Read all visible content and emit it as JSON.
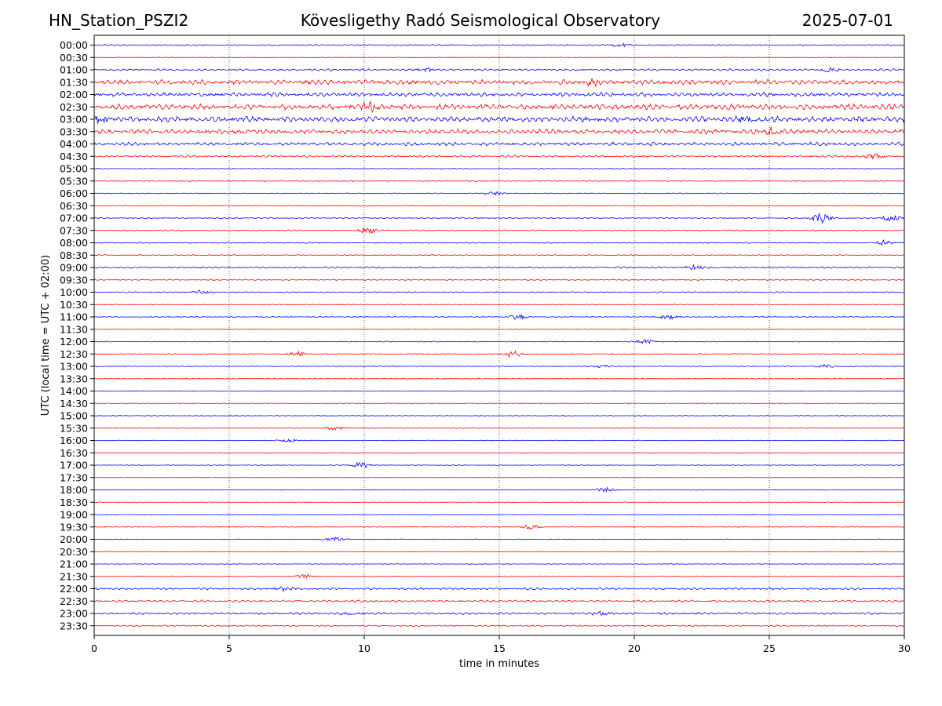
{
  "header": {
    "station": "HN_Station_PSZI2",
    "observatory": "Kövesligethy Radó Seismological Observatory",
    "date": "2025-07-01"
  },
  "chart_data": {
    "type": "line",
    "xlabel": "time in minutes",
    "ylabel": "UTC (local time = UTC + 02:00)",
    "xlim": [
      0,
      30
    ],
    "x_ticks": [
      "0",
      "5",
      "10",
      "15",
      "20",
      "25",
      "30"
    ],
    "x_tick_values": [
      0,
      5,
      10,
      15,
      20,
      25,
      30
    ],
    "vertical_gridlines": "dotted at every x tick",
    "row_labels": [
      "00:00",
      "00:30",
      "01:00",
      "01:30",
      "02:00",
      "02:30",
      "03:00",
      "03:30",
      "04:00",
      "04:30",
      "05:00",
      "05:30",
      "06:00",
      "06:30",
      "07:00",
      "07:30",
      "08:00",
      "08:30",
      "09:00",
      "09:30",
      "10:00",
      "10:30",
      "11:00",
      "11:30",
      "12:00",
      "12:30",
      "13:00",
      "13:30",
      "14:00",
      "14:30",
      "15:00",
      "15:30",
      "16:00",
      "16:30",
      "17:00",
      "17:30",
      "18:00",
      "18:30",
      "19:00",
      "19:30",
      "20:00",
      "20:30",
      "21:00",
      "21:30",
      "22:00",
      "22:30",
      "23:00",
      "23:30"
    ],
    "trace_colors": [
      "#0000ff",
      "#ff0000"
    ],
    "row_noise_levels": [
      1,
      0.5,
      1.5,
      3.5,
      3,
      4,
      4,
      3.5,
      2.5,
      1.5,
      0.6,
      0.6,
      0.6,
      0.6,
      0.8,
      0.8,
      0.8,
      0.8,
      1.2,
      0.8,
      0.8,
      0.5,
      0.6,
      0.5,
      0.6,
      0.5,
      0.6,
      0.5,
      0.4,
      0.5,
      0.4,
      0.5,
      0.4,
      0.5,
      0.5,
      0.3,
      0.4,
      0.4,
      0.3,
      0.4,
      0.4,
      0.4,
      0.4,
      0.6,
      1.5,
      1.5,
      1.5,
      1
    ],
    "events": [
      {
        "row": "00:00",
        "minute": 19.5,
        "amplitude": 2.5
      },
      {
        "row": "01:00",
        "minute": 12.3,
        "amplitude": 3
      },
      {
        "row": "01:00",
        "minute": 27.2,
        "amplitude": 4
      },
      {
        "row": "01:30",
        "minute": 18.5,
        "amplitude": 4
      },
      {
        "row": "02:30",
        "minute": 10.3,
        "amplitude": 5
      },
      {
        "row": "03:00",
        "minute": 0.2,
        "amplitude": 6
      },
      {
        "row": "03:00",
        "minute": 24.1,
        "amplitude": 5
      },
      {
        "row": "03:30",
        "minute": 25.1,
        "amplitude": 6
      },
      {
        "row": "04:30",
        "minute": 28.9,
        "amplitude": 4
      },
      {
        "row": "06:00",
        "minute": 14.8,
        "amplitude": 2.5
      },
      {
        "row": "07:00",
        "minute": 26.9,
        "amplitude": 7
      },
      {
        "row": "07:00",
        "minute": 29.5,
        "amplitude": 5
      },
      {
        "row": "07:30",
        "minute": 10.1,
        "amplitude": 4
      },
      {
        "row": "08:00",
        "minute": 29.2,
        "amplitude": 4
      },
      {
        "row": "09:00",
        "minute": 22.2,
        "amplitude": 3
      },
      {
        "row": "10:00",
        "minute": 4.0,
        "amplitude": 2.5
      },
      {
        "row": "11:00",
        "minute": 15.7,
        "amplitude": 3
      },
      {
        "row": "11:00",
        "minute": 21.3,
        "amplitude": 3
      },
      {
        "row": "12:00",
        "minute": 20.4,
        "amplitude": 3
      },
      {
        "row": "12:30",
        "minute": 7.5,
        "amplitude": 3
      },
      {
        "row": "12:30",
        "minute": 15.5,
        "amplitude": 4
      },
      {
        "row": "13:00",
        "minute": 18.8,
        "amplitude": 2
      },
      {
        "row": "13:00",
        "minute": 27.0,
        "amplitude": 2.5
      },
      {
        "row": "15:30",
        "minute": 8.9,
        "amplitude": 3
      },
      {
        "row": "16:00",
        "minute": 7.2,
        "amplitude": 2.5
      },
      {
        "row": "17:00",
        "minute": 9.9,
        "amplitude": 4
      },
      {
        "row": "18:00",
        "minute": 18.9,
        "amplitude": 3
      },
      {
        "row": "19:30",
        "minute": 16.2,
        "amplitude": 3
      },
      {
        "row": "20:00",
        "minute": 8.9,
        "amplitude": 2.5
      },
      {
        "row": "21:30",
        "minute": 7.8,
        "amplitude": 2.5
      },
      {
        "row": "22:00",
        "minute": 7.1,
        "amplitude": 3
      },
      {
        "row": "23:00",
        "minute": 9.5,
        "amplitude": 3
      },
      {
        "row": "23:00",
        "minute": 18.8,
        "amplitude": 3
      }
    ]
  }
}
